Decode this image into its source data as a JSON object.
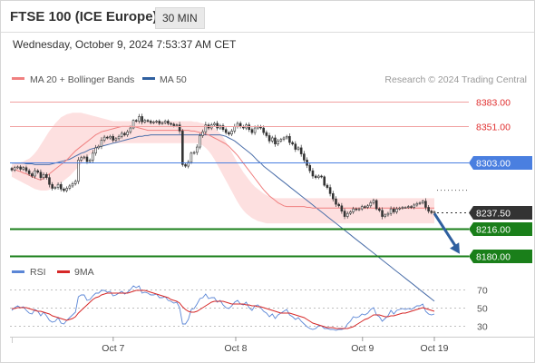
{
  "header": {
    "title": "FTSE 100 (ICE Europe)",
    "timeframe": "30 MIN",
    "datetime": "Wednesday, October 9, 2024 7:53:37 AM CET"
  },
  "credit": "Research © 2024 Trading Central",
  "colors": {
    "candle_up": "#ffffff",
    "candle_down": "#333333",
    "ma20": "#f08080",
    "band_fill": "#fde0e0",
    "ma50": "#4a6ea9",
    "resistance": "#f0a0a0",
    "pivot": "#4a7fe0",
    "support": "#1a7f1a",
    "current": "#333333",
    "arrow": "#2f5f9f",
    "rsi": "#5b86d6",
    "rsi_ma": "#d62828"
  },
  "chart_data": [
    {
      "type": "candlestick",
      "legend": [
        {
          "name": "MA 20 + Bollinger Bands",
          "color": "#f08080"
        },
        {
          "name": "MA 50",
          "color": "#2f5f9f"
        }
      ],
      "ylim": [
        8172,
        8398
      ],
      "x_ticks": [
        "Oct 7",
        "Oct 8",
        "Oct 9",
        "Oct 19"
      ],
      "x_tick_pos": [
        24,
        53,
        83,
        100
      ],
      "levels": [
        {
          "value": 8383.0,
          "label": "8383.00",
          "kind": "resistance"
        },
        {
          "value": 8351.0,
          "label": "8351.00",
          "kind": "resistance"
        },
        {
          "value": 8303.0,
          "label": "8303.00",
          "kind": "pivot"
        },
        {
          "value": 8237.5,
          "label": "8237.50",
          "kind": "current"
        },
        {
          "value": 8216.0,
          "label": "8216.00",
          "kind": "support"
        },
        {
          "value": 8180.0,
          "label": "8180.00",
          "kind": "support"
        }
      ],
      "forecast_arrow": {
        "from": [
          100,
          8236
        ],
        "to": [
          106,
          8183
        ]
      },
      "closes": [
        8293,
        8296,
        8297,
        8294,
        8296,
        8292,
        8288,
        8285,
        8292,
        8290,
        8283,
        8287,
        8283,
        8274,
        8269,
        8270,
        8274,
        8268,
        8266,
        8269,
        8272,
        8275,
        8278,
        8306,
        8309,
        8310,
        8304,
        8306,
        8315,
        8322,
        8324,
        8332,
        8336,
        8335,
        8337,
        8332,
        8334,
        8337,
        8341,
        8339,
        8343,
        8348,
        8358,
        8357,
        8363,
        8356,
        8358,
        8357,
        8355,
        8356,
        8357,
        8354,
        8355,
        8357,
        8354,
        8353,
        8351,
        8352,
        8344,
        8300,
        8298,
        8303,
        8315,
        8316,
        8323,
        8338,
        8343,
        8352,
        8348,
        8352,
        8354,
        8348,
        8351,
        8346,
        8342,
        8340,
        8344,
        8350,
        8354,
        8350,
        8348,
        8352,
        8346,
        8342,
        8348,
        8350,
        8348,
        8342,
        8338,
        8331,
        8335,
        8327,
        8331,
        8333,
        8335,
        8337,
        8329,
        8327,
        8320,
        8322,
        8314,
        8306,
        8299,
        8292,
        8285,
        8283,
        8285,
        8284,
        8273,
        8270,
        8262,
        8255,
        8248,
        8246,
        8239,
        8232,
        8236,
        8238,
        8242,
        8241,
        8242,
        8245,
        8244,
        8246,
        8250,
        8253,
        8242,
        8240,
        8232,
        8234,
        8236,
        8242,
        8238,
        8242,
        8243,
        8244,
        8244,
        8245,
        8244,
        8247,
        8249,
        8250,
        8252,
        8244,
        8239,
        8237,
        8238
      ],
      "ma20": [
        8295,
        8294,
        8292,
        8291,
        8289,
        8288,
        8286,
        8284,
        8283,
        8281,
        8280,
        8282,
        8285,
        8288,
        8291,
        8294,
        8297,
        8300,
        8303,
        8306,
        8310,
        8314,
        8318,
        8321,
        8324,
        8327,
        8330,
        8333,
        8336,
        8339,
        8341,
        8343,
        8344,
        8345,
        8346,
        8347,
        8348,
        8349,
        8350,
        8350,
        8350,
        8350,
        8350,
        8349,
        8348,
        8347,
        8346,
        8345,
        8345,
        8345,
        8345,
        8345,
        8345,
        8345,
        8345,
        8345,
        8345,
        8345,
        8345,
        8345,
        8345,
        8345,
        8344,
        8344,
        8343,
        8342,
        8341,
        8340,
        8339,
        8337,
        8335,
        8333,
        8331,
        8329,
        8327,
        8324,
        8320,
        8316,
        8312,
        8307,
        8302,
        8297,
        8292,
        8287,
        8282,
        8277,
        8272,
        8267,
        8263,
        8259,
        8256,
        8253,
        8250,
        8248,
        8246,
        8245,
        8245,
        8245,
        8245,
        8245,
        8245,
        8245,
        8244,
        8244,
        8243,
        8243,
        8243,
        8243,
        8243,
        8243,
        8243,
        8243,
        8243,
        8243,
        8243,
        8243,
        8243,
        8243,
        8243,
        8243,
        8243,
        8243,
        8243,
        8243,
        8243,
        8243,
        8243,
        8243,
        8243,
        8243,
        8243,
        8243,
        8243,
        8243,
        8243,
        8243,
        8243,
        8243,
        8243,
        8243,
        8243,
        8243,
        8243,
        8243,
        8243,
        8243,
        8243
      ],
      "band_upper": [
        8300,
        8301,
        8302,
        8303,
        8304,
        8306,
        8308,
        8311,
        8315,
        8320,
        8326,
        8332,
        8338,
        8344,
        8349,
        8354,
        8358,
        8362,
        8364,
        8366,
        8367,
        8368,
        8368,
        8368,
        8368,
        8367,
        8366,
        8365,
        8364,
        8363,
        8362,
        8361,
        8360,
        8359,
        8358,
        8357,
        8357,
        8357,
        8357,
        8357,
        8357,
        8357,
        8357,
        8357,
        8357,
        8357,
        8357,
        8357,
        8357,
        8357,
        8357,
        8357,
        8357,
        8357,
        8357,
        8357,
        8357,
        8357,
        8357,
        8357,
        8357,
        8357,
        8357,
        8356,
        8356,
        8355,
        8354,
        8353,
        8352,
        8350,
        8348,
        8345,
        8341,
        8336,
        8330,
        8323,
        8316,
        8309,
        8302,
        8296,
        8290,
        8285,
        8280,
        8275,
        8271,
        8268,
        8265,
        8262,
        8260,
        8258,
        8257,
        8256,
        8256,
        8256,
        8256,
        8256,
        8256,
        8256,
        8256,
        8256,
        8256,
        8256,
        8256,
        8256,
        8256,
        8256,
        8256,
        8256,
        8256,
        8256,
        8256,
        8256,
        8256,
        8256,
        8256,
        8256,
        8256,
        8256,
        8256,
        8256,
        8256,
        8256,
        8256,
        8256,
        8256,
        8256,
        8256,
        8256,
        8256,
        8256,
        8256,
        8256,
        8256,
        8256,
        8256,
        8256,
        8256,
        8256,
        8256,
        8256,
        8256,
        8256,
        8256,
        8256,
        8256,
        8256,
        8256
      ],
      "band_lower": [
        8284,
        8282,
        8280,
        8278,
        8276,
        8274,
        8272,
        8270,
        8268,
        8267,
        8266,
        8266,
        8266,
        8267,
        8269,
        8271,
        8273,
        8276,
        8279,
        8282,
        8285,
        8289,
        8293,
        8297,
        8301,
        8305,
        8309,
        8313,
        8316,
        8319,
        8322,
        8324,
        8326,
        8327,
        8328,
        8328,
        8328,
        8328,
        8328,
        8328,
        8328,
        8328,
        8328,
        8328,
        8328,
        8328,
        8328,
        8328,
        8328,
        8328,
        8328,
        8328,
        8328,
        8328,
        8328,
        8328,
        8328,
        8328,
        8328,
        8328,
        8328,
        8328,
        8328,
        8328,
        8328,
        8327,
        8325,
        8322,
        8318,
        8313,
        8307,
        8300,
        8293,
        8286,
        8279,
        8272,
        8265,
        8258,
        8251,
        8245,
        8240,
        8236,
        8233,
        8230,
        8228,
        8226,
        8225,
        8224,
        8223,
        8223,
        8223,
        8223,
        8223,
        8223,
        8223,
        8223,
        8223,
        8223,
        8223,
        8223,
        8223,
        8223,
        8223,
        8223,
        8223,
        8223,
        8223,
        8223,
        8223,
        8223,
        8223,
        8223,
        8223,
        8223,
        8223,
        8223,
        8223,
        8223,
        8223,
        8223,
        8223,
        8223,
        8223,
        8223,
        8223,
        8223,
        8223,
        8223,
        8223,
        8223,
        8223,
        8223,
        8223,
        8223,
        8223,
        8223,
        8223,
        8223,
        8223,
        8223,
        8223,
        8223,
        8223,
        8223,
        8223,
        8223,
        8223
      ],
      "ma50": [
        8302,
        8302,
        8302,
        8302,
        8302,
        8301,
        8301,
        8301,
        8300,
        8300,
        8300,
        8300,
        8300,
        8300,
        8301,
        8302,
        8303,
        8304,
        8305,
        8306,
        8307,
        8309,
        8311,
        8313,
        8315,
        8316,
        8318,
        8320,
        8321,
        8322,
        8323,
        8324,
        8325,
        8326,
        8327,
        8328,
        8329,
        8330,
        8331,
        8332,
        8333,
        8334,
        8335,
        8336,
        8337,
        8337,
        8338,
        8338,
        8339,
        8339,
        8339,
        8339,
        8339,
        8339,
        8339,
        8339,
        8339,
        8339,
        8339,
        8339,
        8339,
        8339,
        8339,
        8339,
        8339,
        8339,
        8339,
        8339,
        8339,
        8339,
        8339,
        8339,
        8339,
        8338,
        8337,
        8335,
        8333,
        8331,
        8328,
        8325,
        8322,
        8319,
        8316,
        8313,
        8309,
        8305,
        8302,
        8298,
        8295,
        8292,
        8289,
        8286,
        8283,
        8280,
        8277,
        8274,
        8271,
        8268,
        8265,
        8262,
        8259,
        8256,
        8253,
        8250,
        8247,
        8244,
        8241,
        8238,
        8235,
        8232,
        8229,
        8226,
        8223,
        8220,
        8217,
        8214,
        8211,
        8208,
        8205,
        8202,
        8199,
        8196,
        8193,
        8190,
        8187,
        8184,
        8181,
        8178,
        8175,
        8172,
        8169,
        8166,
        8163,
        8160,
        8157,
        8154,
        8151,
        8148,
        8145,
        8142,
        8139,
        8136,
        8133,
        8130,
        8127,
        8124,
        8121
      ]
    },
    {
      "type": "line",
      "legend": [
        {
          "name": "RSI",
          "color": "#5b86d6"
        },
        {
          "name": "9MA",
          "color": "#d62828"
        }
      ],
      "ylim": [
        20,
        78
      ],
      "y_ticks": [
        70,
        50,
        30
      ],
      "rsi": [
        47,
        50,
        52,
        50,
        51,
        47,
        44,
        43,
        48,
        46,
        41,
        45,
        41,
        36,
        34,
        35,
        39,
        33,
        32,
        36,
        39,
        42,
        45,
        62,
        64,
        64,
        58,
        59,
        63,
        66,
        66,
        69,
        69,
        67,
        68,
        63,
        64,
        66,
        68,
        65,
        67,
        70,
        74,
        72,
        74,
        66,
        67,
        66,
        64,
        64,
        65,
        61,
        61,
        62,
        58,
        57,
        55,
        56,
        50,
        32,
        32,
        37,
        48,
        49,
        54,
        60,
        61,
        65,
        60,
        61,
        61,
        56,
        58,
        53,
        50,
        49,
        52,
        56,
        58,
        54,
        53,
        56,
        50,
        47,
        52,
        53,
        50,
        46,
        44,
        40,
        43,
        38,
        42,
        44,
        46,
        48,
        42,
        40,
        37,
        39,
        35,
        32,
        29,
        27,
        26,
        27,
        30,
        30,
        27,
        27,
        26,
        26,
        25,
        26,
        26,
        27,
        32,
        35,
        40,
        39,
        40,
        43,
        42,
        44,
        48,
        50,
        42,
        40,
        35,
        38,
        41,
        47,
        43,
        47,
        48,
        49,
        48,
        49,
        48,
        50,
        52,
        52,
        54,
        46,
        43,
        42,
        43
      ],
      "rsi_ma": [
        49,
        49,
        50,
        50,
        50,
        50,
        49,
        48,
        47,
        46,
        46,
        45,
        44,
        43,
        41,
        40,
        39,
        38,
        37,
        36,
        37,
        38,
        40,
        44,
        47,
        50,
        53,
        56,
        59,
        61,
        62,
        64,
        65,
        66,
        66,
        66,
        66,
        66,
        66,
        66,
        66,
        67,
        68,
        69,
        69,
        69,
        69,
        68,
        67,
        66,
        65,
        64,
        63,
        62,
        61,
        59,
        58,
        57,
        55,
        51,
        48,
        46,
        45,
        45,
        46,
        48,
        50,
        52,
        54,
        56,
        57,
        57,
        57,
        57,
        56,
        55,
        54,
        54,
        54,
        54,
        54,
        53,
        53,
        52,
        52,
        51,
        51,
        50,
        49,
        48,
        47,
        46,
        45,
        44,
        44,
        44,
        44,
        43,
        42,
        41,
        40,
        39,
        37,
        35,
        33,
        32,
        31,
        30,
        29,
        28,
        28,
        28,
        27,
        27,
        27,
        27,
        27,
        28,
        29,
        31,
        33,
        35,
        37,
        38,
        40,
        42,
        42,
        42,
        41,
        40,
        40,
        41,
        41,
        42,
        43,
        44,
        44,
        45,
        46,
        47,
        48,
        49,
        50,
        49,
        48,
        47,
        46
      ]
    }
  ]
}
